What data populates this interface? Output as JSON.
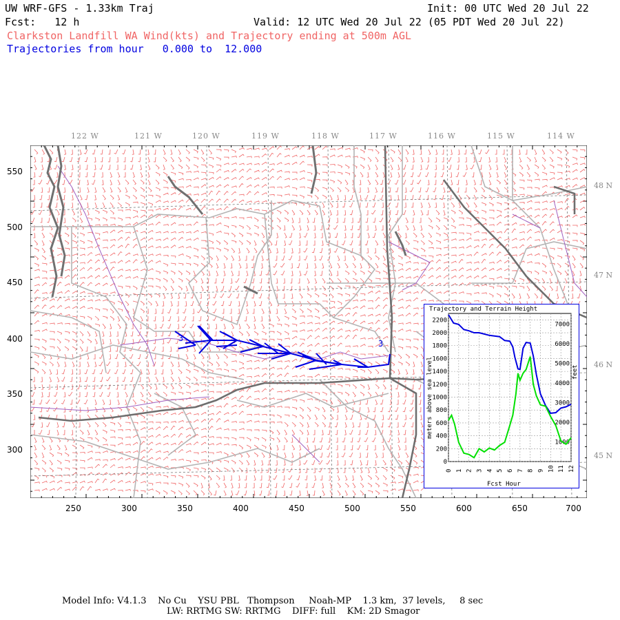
{
  "header": {
    "model": "UW WRF-GFS - 1.33km Traj",
    "init": "Init: 00 UTC Wed 20 Jul 22",
    "fcst": "Fcst:   12 h",
    "valid": "Valid: 12 UTC Wed 20 Jul 22 (05 PDT Wed 20 Jul 22)",
    "subtitle": "Clarkston Landfill WA Wind(kts) and Trajectory ending at 500m AGL",
    "traj_range": "Trajectories from hour   0.000 to  12.000"
  },
  "map": {
    "top_lon_labels": [
      "122 W",
      "121 W",
      "120 W",
      "119 W",
      "118 W",
      "117 W",
      "116 W",
      "115 W",
      "114 W"
    ],
    "right_lat_labels": [
      "48 N",
      "47 N",
      "46 N",
      "45 N"
    ],
    "x_ticks": [
      "250",
      "300",
      "350",
      "400",
      "450",
      "500",
      "550",
      "600",
      "650",
      "700"
    ],
    "y_ticks": [
      "550",
      "500",
      "450",
      "400",
      "350",
      "300"
    ],
    "trajectory_marker_start": "3",
    "trajectory_marker_end": "3",
    "colors": {
      "barbs": "#f06464",
      "trajectory": "#0000e0",
      "roads": "#b4b4b4",
      "rivers": "#a060c0",
      "coast": "#707070"
    }
  },
  "inset": {
    "title": "Trajectory and Terrain Height",
    "ylabel_left": "meters above sea level",
    "ylabel_right": "feet",
    "xlabel": "Fcst Hour",
    "left_ticks": [
      "0",
      "200",
      "400",
      "600",
      "800",
      "1000",
      "1200",
      "1400",
      "1600",
      "1800",
      "2000",
      "2200"
    ],
    "right_ticks": [
      "1000",
      "2000",
      "3000",
      "4000",
      "5000",
      "6000",
      "7000"
    ],
    "x_ticks": [
      "0",
      "1",
      "2",
      "3",
      "4",
      "5",
      "6",
      "7",
      "8",
      "9",
      "10",
      "11",
      "12"
    ],
    "ylim_m": [
      0,
      2300
    ],
    "xlim_h": [
      0,
      12
    ],
    "chart_data": {
      "type": "line",
      "series": [
        {
          "color": "#0000e0",
          "x": [
            0,
            0.5,
            1,
            1.5,
            2,
            2.5,
            3,
            3.5,
            4,
            4.5,
            5,
            5.5,
            6,
            6.3,
            6.5,
            6.8,
            7,
            7.3,
            7.6,
            8,
            8.3,
            8.6,
            9,
            9.5,
            10,
            10.5,
            11,
            11.5,
            12
          ],
          "y": [
            2280,
            2150,
            2130,
            2050,
            2030,
            2000,
            2000,
            1980,
            1960,
            1950,
            1940,
            1880,
            1870,
            1780,
            1620,
            1440,
            1430,
            1760,
            1850,
            1840,
            1640,
            1350,
            1050,
            870,
            750,
            760,
            830,
            850,
            890
          ]
        },
        {
          "color": "#00e000",
          "x": [
            0,
            0.3,
            0.6,
            1,
            1.5,
            2,
            2.5,
            3,
            3.5,
            4,
            4.5,
            5,
            5.5,
            6,
            6.3,
            6.6,
            6.8,
            7,
            7.3,
            7.6,
            8,
            8.3,
            8.6,
            9,
            9.5,
            10,
            10.5,
            11,
            11.5,
            12
          ],
          "y": [
            640,
            720,
            580,
            300,
            130,
            110,
            60,
            200,
            150,
            210,
            180,
            250,
            300,
            560,
            720,
            1050,
            1370,
            1260,
            1370,
            1430,
            1630,
            1200,
            1020,
            880,
            860,
            700,
            560,
            320,
            270,
            370
          ]
        }
      ]
    }
  },
  "footer": {
    "line1": "Model Info: V4.1.3    No Cu    YSU PBL   Thompson     Noah-MP    1.3 km,  37 levels,     8 sec",
    "line2": "LW: RRTMG SW: RRTMG    DIFF: full    KM: 2D Smagor"
  }
}
